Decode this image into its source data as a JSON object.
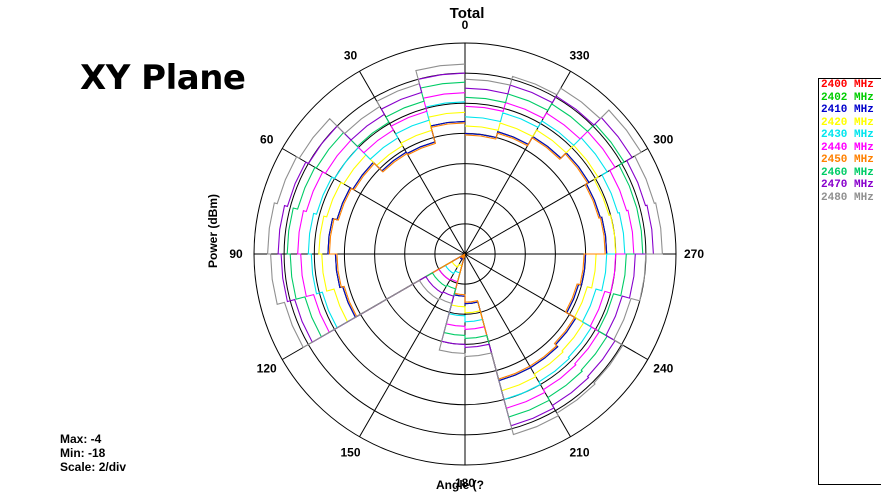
{
  "plane_label": "XY Plane",
  "chart_data": {
    "type": "polar-line",
    "title": "Total",
    "xlabel": "Angle (?",
    "ylabel": "Power (dBm)",
    "r_range": [
      -18,
      -4
    ],
    "scale": "2/div",
    "angle_labels": [
      "0",
      "30",
      "60",
      "90",
      "120",
      "150",
      "180",
      "210",
      "240",
      "270",
      "300",
      "330"
    ],
    "angles": [
      0,
      15,
      30,
      45,
      60,
      75,
      90,
      105,
      120,
      135,
      150,
      165,
      180,
      195,
      210,
      225,
      240,
      255,
      270,
      285,
      300,
      315,
      330,
      345
    ],
    "series": [
      {
        "name": "2400 MHz",
        "color": "#ff0000",
        "values": [
          -9.2,
          -10.3,
          -10.2,
          -9.4,
          -9.2,
          -8.9,
          -9.4,
          -9.6,
          -18,
          -17.6,
          -17.8,
          -15.2,
          -14.7,
          -9.3,
          -9.3,
          -9.5,
          -10.2,
          -10.0,
          -8.6,
          -8.7,
          -8.5,
          -9.0,
          -9.6,
          -10.0
        ]
      },
      {
        "name": "2402 MHz",
        "color": "#00cc00",
        "values": [
          -9.2,
          -10.3,
          -10.2,
          -9.4,
          -9.2,
          -8.9,
          -9.4,
          -9.6,
          -18,
          -17.6,
          -17.8,
          -15.2,
          -14.7,
          -9.3,
          -9.3,
          -9.5,
          -10.2,
          -10.0,
          -8.6,
          -8.7,
          -8.5,
          -9.0,
          -9.6,
          -10.0
        ]
      },
      {
        "name": "2410 MHz",
        "color": "#0000cc",
        "values": [
          -9.2,
          -10.3,
          -10.2,
          -9.4,
          -9.2,
          -8.9,
          -9.4,
          -9.6,
          -18,
          -17.6,
          -17.8,
          -15.2,
          -14.7,
          -9.3,
          -9.3,
          -9.5,
          -10.2,
          -10.0,
          -8.6,
          -8.7,
          -8.5,
          -9.0,
          -9.6,
          -10.0
        ]
      },
      {
        "name": "2420 MHz",
        "color": "#ffff00",
        "values": [
          -8.6,
          -9.5,
          -9.7,
          -8.7,
          -8.5,
          -8.3,
          -8.5,
          -9.0,
          -17,
          -17.0,
          -17.2,
          -14.5,
          -14.1,
          -8.6,
          -8.8,
          -8.9,
          -9.6,
          -9.3,
          -8.0,
          -8.1,
          -7.8,
          -8.5,
          -9.0,
          -9.5
        ]
      },
      {
        "name": "2430 MHz",
        "color": "#00e5ee",
        "values": [
          -7.9,
          -8.8,
          -9.1,
          -8.0,
          -7.8,
          -7.6,
          -7.8,
          -8.2,
          -16.5,
          -16.5,
          -16.7,
          -13.9,
          -13.5,
          -8.0,
          -8.2,
          -8.3,
          -9.0,
          -8.6,
          -7.4,
          -7.5,
          -7.1,
          -7.8,
          -8.3,
          -8.9
        ]
      },
      {
        "name": "2440 MHz",
        "color": "#ff00ff",
        "values": [
          -7.3,
          -8.2,
          -8.5,
          -7.3,
          -7.1,
          -6.9,
          -7.1,
          -7.6,
          -16.0,
          -16.0,
          -16.1,
          -13.2,
          -13.0,
          -7.4,
          -7.6,
          -7.7,
          -8.4,
          -8.0,
          -6.8,
          -6.9,
          -6.5,
          -7.2,
          -7.6,
          -8.2
        ]
      },
      {
        "name": "2450 MHz",
        "color": "#ff8000",
        "values": [
          -9.3,
          -10.4,
          -10.3,
          -9.5,
          -9.3,
          -9.0,
          -9.5,
          -9.7,
          -18,
          -17.7,
          -17.9,
          -15.3,
          -14.8,
          -9.4,
          -9.4,
          -9.6,
          -10.3,
          -10.1,
          -8.7,
          -8.8,
          -8.6,
          -9.1,
          -9.7,
          -10.1
        ]
      },
      {
        "name": "2460 MHz",
        "color": "#00cc66",
        "values": [
          -6.6,
          -7.5,
          -7.9,
          -6.6,
          -6.5,
          -6.2,
          -6.4,
          -7.0,
          -15.5,
          -15.5,
          -15.6,
          -12.6,
          -12.4,
          -6.8,
          -7.0,
          -7.1,
          -7.8,
          -7.3,
          -6.2,
          -6.2,
          -5.8,
          -6.5,
          -7.0,
          -7.6
        ]
      },
      {
        "name": "2470 MHz",
        "color": "#8800cc",
        "values": [
          -6.0,
          -6.9,
          -7.3,
          -6.0,
          -5.8,
          -5.6,
          -5.8,
          -6.3,
          -15.0,
          -15.0,
          -15.1,
          -12.0,
          -11.8,
          -6.2,
          -6.4,
          -6.5,
          -7.2,
          -6.7,
          -5.5,
          -5.6,
          -5.2,
          -5.9,
          -6.4,
          -7.0
        ]
      },
      {
        "name": "2480 MHz",
        "color": "#909090",
        "values": [
          -5.4,
          -6.3,
          -6.7,
          -5.3,
          -5.1,
          -4.9,
          -5.1,
          -5.6,
          -14.5,
          -14.5,
          -14.6,
          -11.4,
          -11.2,
          -5.6,
          -5.8,
          -5.9,
          -6.6,
          -6.0,
          -4.9,
          -5.0,
          -4.5,
          -5.3,
          -5.8,
          -6.4
        ]
      }
    ]
  },
  "stats": {
    "max": "Max: -4",
    "min": "Min: -18",
    "scale": "Scale: 2/div"
  },
  "legend_labels": [
    "2400 MHz",
    "2402 MHz",
    "2410 MHz",
    "2420 MHz",
    "2430 MHz",
    "2440 MHz",
    "2450 MHz",
    "2460 MHz",
    "2470 MHz",
    "2480 MHz"
  ]
}
